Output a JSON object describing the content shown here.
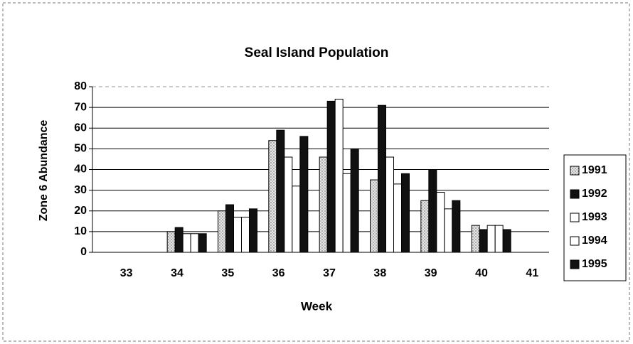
{
  "chart_data": {
    "type": "bar",
    "title": "Seal Island Population",
    "x_label": "Week",
    "y_label": "Zone 6 Abundance",
    "categories": [
      "33",
      "34",
      "35",
      "36",
      "37",
      "38",
      "39",
      "40",
      "41"
    ],
    "series": [
      {
        "name": "1991",
        "color": "#d9d9d9",
        "values": [
          0,
          10,
          20,
          54,
          46,
          35,
          25,
          13,
          0
        ]
      },
      {
        "name": "1992",
        "color": "#111111",
        "values": [
          0,
          12,
          23,
          59,
          73,
          71,
          40,
          11,
          0
        ]
      },
      {
        "name": "1993",
        "color": "#ffffff",
        "values": [
          0,
          9,
          17,
          46,
          74,
          46,
          29,
          13,
          0
        ]
      },
      {
        "name": "1994",
        "color": "#ffffff",
        "values": [
          0,
          9,
          17,
          32,
          38,
          33,
          21,
          13,
          0
        ]
      },
      {
        "name": "1995",
        "color": "#111111",
        "values": [
          0,
          9,
          21,
          56,
          50,
          38,
          25,
          11,
          0
        ]
      }
    ],
    "ylim": [
      0,
      80
    ],
    "yticks": [
      0,
      10,
      20,
      30,
      40,
      50,
      60,
      70,
      80
    ],
    "grid": true
  }
}
